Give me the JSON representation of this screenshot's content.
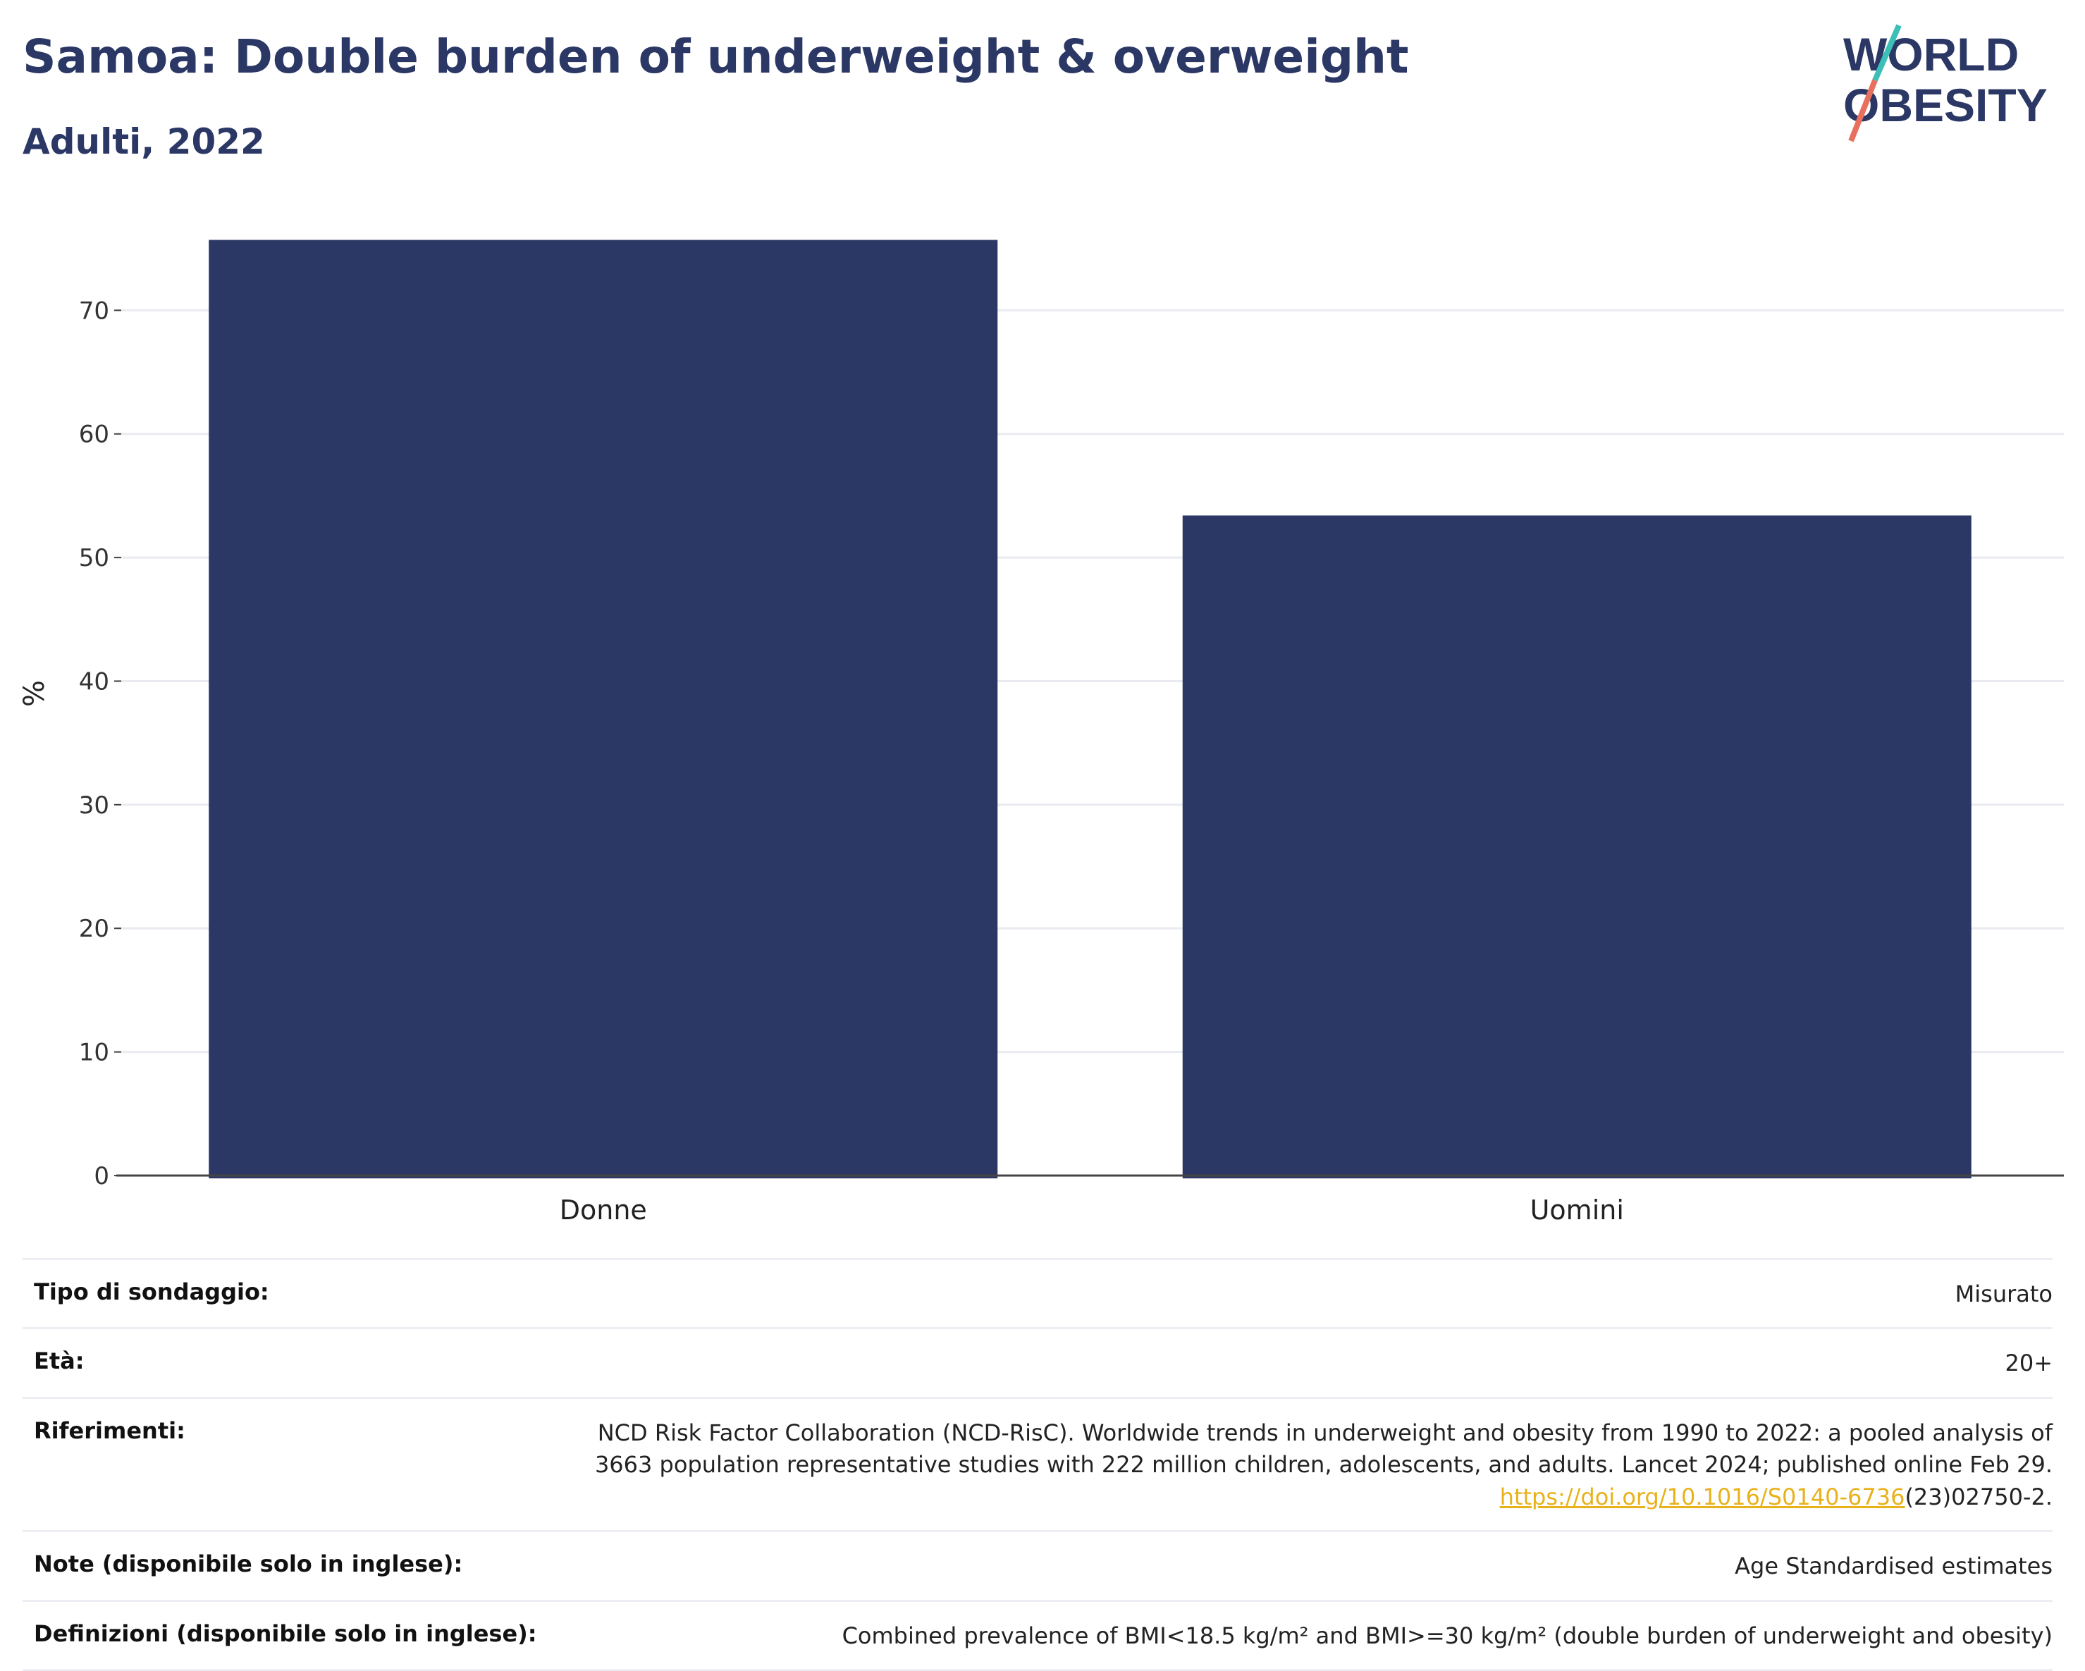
{
  "header": {
    "title": "Samoa: Double burden of underweight & overweight",
    "subtitle": "Adulti, 2022",
    "logo_line1": "WORLD",
    "logo_line2": "OBESITY"
  },
  "colors": {
    "bar": "#2b3764",
    "title": "#2b3764",
    "logo_teal": "#3bbfb7",
    "logo_coral": "#e8705e",
    "link": "#e8b21c"
  },
  "chart_data": {
    "type": "bar",
    "categories": [
      "Donne",
      "Uomini"
    ],
    "values": [
      75.7,
      53.4
    ],
    "title": "",
    "xlabel": "",
    "ylabel": "%",
    "ylim": [
      0,
      78
    ],
    "yticks": [
      "0",
      "10",
      "20",
      "30",
      "40",
      "50",
      "60",
      "70"
    ],
    "grid": true
  },
  "info": {
    "survey": {
      "label": "Tipo di sondaggio:",
      "value": "Misurato"
    },
    "age": {
      "label": "Età:",
      "value": "20+"
    },
    "references": {
      "label": "Riferimenti:",
      "line1": "NCD Risk Factor Collaboration (NCD-RisC). Worldwide trends in underweight and obesity from 1990 to 2022: a pooled analysis of",
      "line2": "3663 population representative studies with 222 million children, adolescents, and adults. Lancet 2024; published online Feb 29.",
      "link": "https://doi.org/10.1016/S0140-6736",
      "link_suffix": "(23)02750-2."
    },
    "notes": {
      "label": "Note (disponibile solo in inglese):",
      "value": "Age Standardised estimates"
    },
    "definitions": {
      "label": "Definizioni (disponibile solo in inglese):",
      "value": "Combined prevalence of BMI<18.5 kg/m² and BMI>=30 kg/m² (double burden of underweight and obesity)"
    }
  }
}
